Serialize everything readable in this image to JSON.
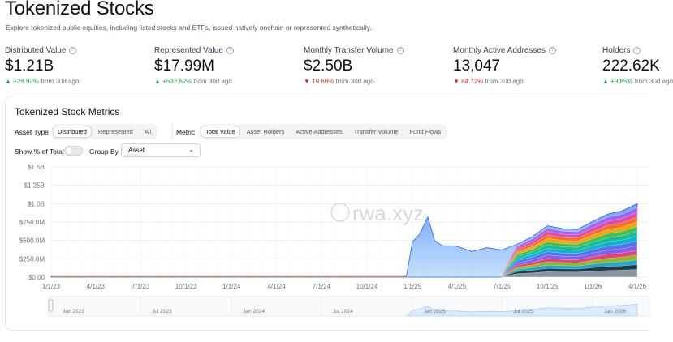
{
  "header": {
    "title": "Tokenized Stocks",
    "subtitle": "Explore tokenized public equities, including listed stocks and ETFs, issued natively onchain or represented synthetically."
  },
  "stats": [
    {
      "label": "Distributed Value",
      "value": "$1.21B",
      "direction": "up",
      "delta": "+26.92%",
      "period": "from 30d ago"
    },
    {
      "label": "Represented Value",
      "value": "$17.99M",
      "direction": "up",
      "delta": "+532.62%",
      "period": "from 30d ago"
    },
    {
      "label": "Monthly Transfer Volume",
      "value": "$2.50B",
      "direction": "down",
      "delta": "19.66%",
      "period": "from 30d ago"
    },
    {
      "label": "Monthly Active Addresses",
      "value": "13,047",
      "direction": "down",
      "delta": "84.72%",
      "period": "from 30d ago"
    },
    {
      "label": "Holders",
      "value": "222.62K",
      "direction": "up",
      "delta": "+9.85%",
      "period": "from 30d ago"
    }
  ],
  "card": {
    "title": "Tokenized Stock Metrics",
    "asset_type_label": "Asset Type",
    "asset_types": [
      "Distributed",
      "Represented",
      "All"
    ],
    "asset_type_selected": "Distributed",
    "metric_label": "Metric",
    "metrics": [
      "Total Value",
      "Asset Holders",
      "Active Addresses",
      "Transfer Volume",
      "Fund Flows"
    ],
    "metric_selected": "Total Value",
    "show_pct_label": "Show % of Total",
    "show_pct_on": false,
    "group_by_label": "Group By",
    "group_by_value": "Asset",
    "watermark": "rwa.xyz"
  },
  "colors": {
    "accent_up": "#16a34a",
    "accent_down": "#dc2626",
    "area_blue": "#3b82f6",
    "brush_fill": "#dbeafe"
  },
  "chart_data": {
    "type": "area",
    "ylim": [
      0,
      1500000000
    ],
    "y_ticks": [
      "$0.00",
      "$250.0M",
      "$500.0M",
      "$750.0M",
      "$1.0B",
      "$1.25B",
      "$1.5B"
    ],
    "x_ticks": [
      "1/1/23",
      "4/1/23",
      "7/1/23",
      "10/1/23",
      "1/1/24",
      "4/1/24",
      "7/1/24",
      "10/1/24",
      "1/1/25",
      "4/1/25",
      "7/1/25",
      "10/1/25",
      "1/1/26",
      "4/1/26"
    ],
    "brush_ticks": [
      "Jan 2023",
      "Jul 2023",
      "Jan 2024",
      "Jul 2024",
      "Jan 2025",
      "Jul 2025",
      "Jan 2026"
    ],
    "stacked_total": {
      "x": [
        "2023-01-01",
        "2023-07-01",
        "2024-01-01",
        "2024-07-01",
        "2024-12-20",
        "2025-01-01",
        "2025-01-15",
        "2025-02-01",
        "2025-02-15",
        "2025-03-01",
        "2025-04-01",
        "2025-05-01",
        "2025-06-01",
        "2025-07-01",
        "2025-08-01",
        "2025-09-01",
        "2025-10-01",
        "2025-11-01",
        "2025-12-01",
        "2026-01-01",
        "2026-02-01",
        "2026-03-01",
        "2026-04-01"
      ],
      "y": [
        15000000,
        15000000,
        16000000,
        18000000,
        20000000,
        480000000,
        580000000,
        820000000,
        500000000,
        430000000,
        420000000,
        350000000,
        400000000,
        370000000,
        450000000,
        550000000,
        700000000,
        660000000,
        650000000,
        760000000,
        860000000,
        900000000,
        1000000000
      ]
    },
    "legend": "none",
    "grid": true
  }
}
